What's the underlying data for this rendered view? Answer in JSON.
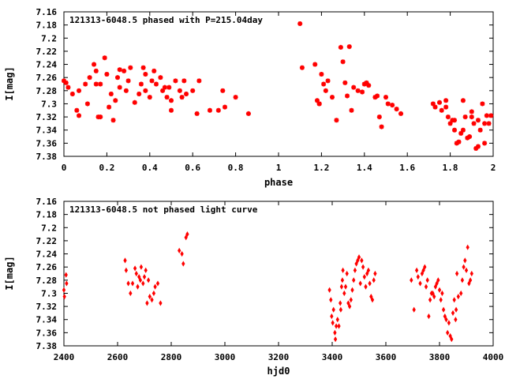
{
  "chart_data": [
    {
      "type": "scatter",
      "title": "121313-6048.5 phased with P=215.04day",
      "xlabel": "phase",
      "ylabel": "I[mag]",
      "xlim": [
        0,
        2
      ],
      "ylim": [
        7.38,
        7.16
      ],
      "y_inverted": true,
      "xticks": [
        "0",
        "0.2",
        "0.4",
        "0.6",
        "0.8",
        "1",
        "1.2",
        "1.4",
        "1.6",
        "1.8",
        "2"
      ],
      "yticks": [
        "7.16",
        "7.18",
        "7.2",
        "7.22",
        "7.24",
        "7.26",
        "7.28",
        "7.3",
        "7.32",
        "7.34",
        "7.36",
        "7.38"
      ],
      "color": "#ff0000",
      "marker": "star",
      "points": [
        [
          0.0,
          7.265
        ],
        [
          0.01,
          7.268
        ],
        [
          0.02,
          7.275
        ],
        [
          0.04,
          7.285
        ],
        [
          0.06,
          7.31
        ],
        [
          0.07,
          7.318
        ],
        [
          0.07,
          7.28
        ],
        [
          0.1,
          7.27
        ],
        [
          0.11,
          7.3
        ],
        [
          0.12,
          7.26
        ],
        [
          0.14,
          7.24
        ],
        [
          0.15,
          7.27
        ],
        [
          0.15,
          7.25
        ],
        [
          0.16,
          7.32
        ],
        [
          0.17,
          7.32
        ],
        [
          0.17,
          7.27
        ],
        [
          0.19,
          7.23
        ],
        [
          0.2,
          7.255
        ],
        [
          0.21,
          7.305
        ],
        [
          0.22,
          7.285
        ],
        [
          0.23,
          7.325
        ],
        [
          0.24,
          7.295
        ],
        [
          0.25,
          7.26
        ],
        [
          0.26,
          7.248
        ],
        [
          0.26,
          7.275
        ],
        [
          0.28,
          7.25
        ],
        [
          0.29,
          7.28
        ],
        [
          0.3,
          7.265
        ],
        [
          0.31,
          7.245
        ],
        [
          0.33,
          7.298
        ],
        [
          0.35,
          7.285
        ],
        [
          0.36,
          7.27
        ],
        [
          0.37,
          7.245
        ],
        [
          0.38,
          7.255
        ],
        [
          0.38,
          7.28
        ],
        [
          0.4,
          7.29
        ],
        [
          0.41,
          7.265
        ],
        [
          0.42,
          7.25
        ],
        [
          0.43,
          7.27
        ],
        [
          0.45,
          7.26
        ],
        [
          0.46,
          7.28
        ],
        [
          0.47,
          7.275
        ],
        [
          0.48,
          7.29
        ],
        [
          0.49,
          7.275
        ],
        [
          0.5,
          7.31
        ],
        [
          0.5,
          7.295
        ],
        [
          0.52,
          7.265
        ],
        [
          0.54,
          7.28
        ],
        [
          0.55,
          7.29
        ],
        [
          0.56,
          7.265
        ],
        [
          0.57,
          7.285
        ],
        [
          0.6,
          7.28
        ],
        [
          0.62,
          7.315
        ],
        [
          0.63,
          7.265
        ],
        [
          0.68,
          7.31
        ],
        [
          0.72,
          7.31
        ],
        [
          0.74,
          7.28
        ],
        [
          0.75,
          7.305
        ],
        [
          0.8,
          7.29
        ],
        [
          0.86,
          7.315
        ],
        [
          1.1,
          7.178
        ],
        [
          1.11,
          7.245
        ],
        [
          1.17,
          7.24
        ],
        [
          1.18,
          7.295
        ],
        [
          1.19,
          7.3
        ],
        [
          1.19,
          7.3
        ],
        [
          1.2,
          7.255
        ],
        [
          1.21,
          7.27
        ],
        [
          1.22,
          7.28
        ],
        [
          1.23,
          7.265
        ],
        [
          1.25,
          7.29
        ],
        [
          1.27,
          7.325
        ],
        [
          1.29,
          7.214
        ],
        [
          1.3,
          7.236
        ],
        [
          1.31,
          7.268
        ],
        [
          1.32,
          7.288
        ],
        [
          1.33,
          7.213
        ],
        [
          1.35,
          7.275
        ],
        [
          1.34,
          7.31
        ],
        [
          1.37,
          7.28
        ],
        [
          1.39,
          7.282
        ],
        [
          1.4,
          7.27
        ],
        [
          1.41,
          7.268
        ],
        [
          1.42,
          7.272
        ],
        [
          1.45,
          7.29
        ],
        [
          1.46,
          7.288
        ],
        [
          1.47,
          7.32
        ],
        [
          1.48,
          7.335
        ],
        [
          1.5,
          7.29
        ],
        [
          1.51,
          7.3
        ],
        [
          1.53,
          7.302
        ],
        [
          1.55,
          7.308
        ],
        [
          1.57,
          7.315
        ],
        [
          1.72,
          7.3
        ],
        [
          1.73,
          7.305
        ],
        [
          1.75,
          7.298
        ],
        [
          1.76,
          7.31
        ],
        [
          1.78,
          7.305
        ],
        [
          1.78,
          7.295
        ],
        [
          1.79,
          7.32
        ],
        [
          1.8,
          7.33
        ],
        [
          1.81,
          7.325
        ],
        [
          1.82,
          7.34
        ],
        [
          1.82,
          7.325
        ],
        [
          1.83,
          7.36
        ],
        [
          1.84,
          7.358
        ],
        [
          1.85,
          7.345
        ],
        [
          1.86,
          7.34
        ],
        [
          1.86,
          7.295
        ],
        [
          1.87,
          7.32
        ],
        [
          1.88,
          7.352
        ],
        [
          1.89,
          7.35
        ],
        [
          1.9,
          7.32
        ],
        [
          1.9,
          7.312
        ],
        [
          1.91,
          7.33
        ],
        [
          1.92,
          7.368
        ],
        [
          1.93,
          7.325
        ],
        [
          1.93,
          7.365
        ],
        [
          1.94,
          7.34
        ],
        [
          1.95,
          7.3
        ],
        [
          1.96,
          7.33
        ],
        [
          1.97,
          7.318
        ],
        [
          1.98,
          7.33
        ],
        [
          1.99,
          7.318
        ],
        [
          1.96,
          7.36
        ]
      ]
    },
    {
      "type": "scatter",
      "title": "121313-6048.5 not phased light curve",
      "xlabel": "hjd0",
      "ylabel": "I[mag]",
      "xlim": [
        2400,
        4000
      ],
      "ylim": [
        7.38,
        7.16
      ],
      "y_inverted": true,
      "xticks": [
        "2400",
        "2600",
        "2800",
        "3000",
        "3200",
        "3400",
        "3600",
        "3800",
        "4000"
      ],
      "yticks": [
        "7.16",
        "7.18",
        "7.2",
        "7.22",
        "7.24",
        "7.26",
        "7.28",
        "7.3",
        "7.32",
        "7.34",
        "7.36",
        "7.38"
      ],
      "color": "#ff0000",
      "marker": "diamond",
      "points": [
        [
          2400,
          7.295
        ],
        [
          2402,
          7.305
        ],
        [
          2408,
          7.272
        ],
        [
          2410,
          7.285
        ],
        [
          2628,
          7.25
        ],
        [
          2632,
          7.265
        ],
        [
          2640,
          7.285
        ],
        [
          2648,
          7.3
        ],
        [
          2656,
          7.285
        ],
        [
          2665,
          7.262
        ],
        [
          2670,
          7.27
        ],
        [
          2675,
          7.29
        ],
        [
          2680,
          7.275
        ],
        [
          2685,
          7.28
        ],
        [
          2688,
          7.26
        ],
        [
          2695,
          7.285
        ],
        [
          2700,
          7.275
        ],
        [
          2705,
          7.265
        ],
        [
          2710,
          7.315
        ],
        [
          2715,
          7.28
        ],
        [
          2720,
          7.305
        ],
        [
          2728,
          7.31
        ],
        [
          2735,
          7.3
        ],
        [
          2740,
          7.29
        ],
        [
          2750,
          7.285
        ],
        [
          2760,
          7.315
        ],
        [
          2830,
          7.235
        ],
        [
          2840,
          7.24
        ],
        [
          2845,
          7.255
        ],
        [
          2855,
          7.215
        ],
        [
          2860,
          7.21
        ],
        [
          3390,
          7.295
        ],
        [
          3395,
          7.31
        ],
        [
          3398,
          7.335
        ],
        [
          3402,
          7.345
        ],
        [
          3405,
          7.325
        ],
        [
          3410,
          7.36
        ],
        [
          3412,
          7.37
        ],
        [
          3415,
          7.35
        ],
        [
          3420,
          7.34
        ],
        [
          3425,
          7.35
        ],
        [
          3430,
          7.315
        ],
        [
          3432,
          7.325
        ],
        [
          3435,
          7.29
        ],
        [
          3438,
          7.28
        ],
        [
          3440,
          7.265
        ],
        [
          3445,
          7.3
        ],
        [
          3450,
          7.29
        ],
        [
          3455,
          7.27
        ],
        [
          3460,
          7.315
        ],
        [
          3465,
          7.32
        ],
        [
          3470,
          7.31
        ],
        [
          3475,
          7.295
        ],
        [
          3480,
          7.28
        ],
        [
          3485,
          7.265
        ],
        [
          3490,
          7.255
        ],
        [
          3495,
          7.25
        ],
        [
          3500,
          7.245
        ],
        [
          3505,
          7.285
        ],
        [
          3510,
          7.25
        ],
        [
          3515,
          7.26
        ],
        [
          3520,
          7.275
        ],
        [
          3525,
          7.29
        ],
        [
          3530,
          7.27
        ],
        [
          3535,
          7.265
        ],
        [
          3540,
          7.285
        ],
        [
          3545,
          7.305
        ],
        [
          3550,
          7.31
        ],
        [
          3555,
          7.28
        ],
        [
          3560,
          7.27
        ],
        [
          3695,
          7.28
        ],
        [
          3705,
          7.325
        ],
        [
          3715,
          7.265
        ],
        [
          3720,
          7.275
        ],
        [
          3728,
          7.285
        ],
        [
          3735,
          7.27
        ],
        [
          3740,
          7.265
        ],
        [
          3745,
          7.26
        ],
        [
          3750,
          7.29
        ],
        [
          3755,
          7.28
        ],
        [
          3760,
          7.335
        ],
        [
          3765,
          7.31
        ],
        [
          3770,
          7.3
        ],
        [
          3775,
          7.3
        ],
        [
          3780,
          7.305
        ],
        [
          3785,
          7.29
        ],
        [
          3790,
          7.285
        ],
        [
          3795,
          7.28
        ],
        [
          3800,
          7.295
        ],
        [
          3805,
          7.31
        ],
        [
          3810,
          7.3
        ],
        [
          3815,
          7.325
        ],
        [
          3820,
          7.335
        ],
        [
          3825,
          7.34
        ],
        [
          3830,
          7.36
        ],
        [
          3835,
          7.345
        ],
        [
          3840,
          7.365
        ],
        [
          3845,
          7.37
        ],
        [
          3850,
          7.33
        ],
        [
          3855,
          7.31
        ],
        [
          3860,
          7.34
        ],
        [
          3862,
          7.325
        ],
        [
          3865,
          7.27
        ],
        [
          3870,
          7.305
        ],
        [
          3880,
          7.3
        ],
        [
          3885,
          7.28
        ],
        [
          3890,
          7.26
        ],
        [
          3895,
          7.25
        ],
        [
          3900,
          7.265
        ],
        [
          3905,
          7.23
        ],
        [
          3910,
          7.285
        ],
        [
          3915,
          7.28
        ],
        [
          3920,
          7.27
        ]
      ]
    }
  ]
}
